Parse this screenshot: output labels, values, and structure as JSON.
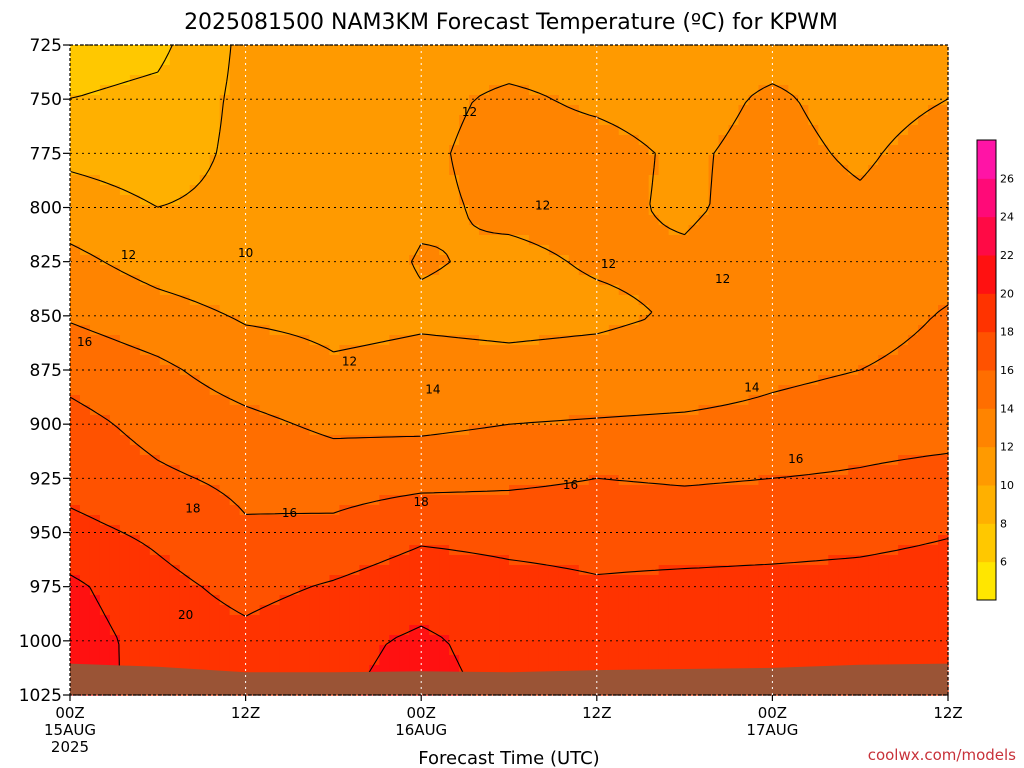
{
  "chart_data": {
    "type": "heatmap",
    "title": "2025081500 NAM3KM Forecast Temperature (ºC) for KPWM",
    "xlabel": "Forecast Time (UTC)",
    "ylabel": "",
    "credit": "coolwx.com/models",
    "x_ticks": [
      {
        "hour": 0,
        "lines": [
          "00Z",
          "15AUG",
          "2025"
        ]
      },
      {
        "hour": 12,
        "lines": [
          "12Z"
        ]
      },
      {
        "hour": 24,
        "lines": [
          "00Z",
          "16AUG"
        ]
      },
      {
        "hour": 36,
        "lines": [
          "12Z"
        ]
      },
      {
        "hour": 48,
        "lines": [
          "00Z",
          "17AUG"
        ]
      },
      {
        "hour": 60,
        "lines": [
          "12Z"
        ]
      }
    ],
    "xlim": [
      0,
      60
    ],
    "y_ticks": [
      725,
      750,
      775,
      800,
      825,
      850,
      875,
      900,
      925,
      950,
      975,
      1000,
      1025
    ],
    "ylim": [
      1025,
      725
    ],
    "grid": true,
    "colorbar": {
      "ticks": [
        6,
        8,
        10,
        12,
        14,
        16,
        18,
        20,
        22,
        24,
        26
      ],
      "levels": [
        4,
        6,
        8,
        10,
        12,
        14,
        16,
        18,
        20,
        22,
        24,
        26,
        28
      ],
      "colors": [
        "#ffe600",
        "#ffc800",
        "#ffb000",
        "#ff9a00",
        "#ff8400",
        "#ff6e00",
        "#ff5200",
        "#ff3300",
        "#ff1111",
        "#ff0a45",
        "#ff0a78",
        "#ff14a6"
      ]
    },
    "contour_labels": [
      {
        "text": "12",
        "hour": 27.3,
        "p": 756
      },
      {
        "text": "12",
        "hour": 32.3,
        "p": 799
      },
      {
        "text": "12",
        "hour": 36.8,
        "p": 826
      },
      {
        "text": "12",
        "hour": 44.6,
        "p": 833
      },
      {
        "text": "12",
        "hour": 4.0,
        "p": 822
      },
      {
        "text": "10",
        "hour": 12.0,
        "p": 821
      },
      {
        "text": "12",
        "hour": 19.1,
        "p": 871
      },
      {
        "text": "16",
        "hour": 1.0,
        "p": 862
      },
      {
        "text": "14",
        "hour": 24.8,
        "p": 884
      },
      {
        "text": "14",
        "hour": 46.6,
        "p": 883
      },
      {
        "text": "16",
        "hour": 49.6,
        "p": 916
      },
      {
        "text": "16",
        "hour": 34.2,
        "p": 928
      },
      {
        "text": "16",
        "hour": 15.0,
        "p": 941
      },
      {
        "text": "18",
        "hour": 8.4,
        "p": 939
      },
      {
        "text": "18",
        "hour": 24.0,
        "p": 936
      },
      {
        "text": "20",
        "hour": 7.9,
        "p": 988
      }
    ],
    "temperature_field": {
      "hours": [
        0,
        6,
        12,
        18,
        24,
        30,
        36,
        42,
        48,
        54,
        60
      ],
      "pressures": [
        725,
        750,
        775,
        800,
        825,
        850,
        875,
        900,
        925,
        950,
        975,
        1000,
        1025
      ],
      "values": [
        [
          7.0,
          7.5,
          10.5,
          11.5,
          11.5,
          11.5,
          11.5,
          11.5,
          11.5,
          11.5,
          11.5
        ],
        [
          8.0,
          8.5,
          10.5,
          11.5,
          11.7,
          12.2,
          11.8,
          11.5,
          12.2,
          11.5,
          12.0
        ],
        [
          9.5,
          9.0,
          10.5,
          11.0,
          11.8,
          12.4,
          12.4,
          11.8,
          12.4,
          11.8,
          12.6
        ],
        [
          11.0,
          10.0,
          10.5,
          10.8,
          11.8,
          12.2,
          12.3,
          11.8,
          12.5,
          12.2,
          12.8
        ],
        [
          12.5,
          11.2,
          10.6,
          11.2,
          12.1,
          11.8,
          12.1,
          12.2,
          12.8,
          12.6,
          13.2
        ],
        [
          13.8,
          12.8,
          11.8,
          11.6,
          11.8,
          11.7,
          11.8,
          12.1,
          12.6,
          13.0,
          14.2
        ],
        [
          15.4,
          14.4,
          13.0,
          12.2,
          12.4,
          12.3,
          12.4,
          12.6,
          13.5,
          14.0,
          14.8
        ],
        [
          16.6,
          15.4,
          14.5,
          13.6,
          13.6,
          14.0,
          14.2,
          14.4,
          14.7,
          15.2,
          15.3
        ],
        [
          17.3,
          16.3,
          15.6,
          15.1,
          15.4,
          15.6,
          16.0,
          15.8,
          16.0,
          16.2,
          16.6
        ],
        [
          18.6,
          17.6,
          16.2,
          16.5,
          17.6,
          17.4,
          17.3,
          17.2,
          17.3,
          17.5,
          17.9
        ],
        [
          20.4,
          18.6,
          17.4,
          18.2,
          19.2,
          18.6,
          18.2,
          18.4,
          18.5,
          18.6,
          18.8
        ],
        [
          21.0,
          19.2,
          18.5,
          19.5,
          20.3,
          19.3,
          19.0,
          19.2,
          19.3,
          19.2,
          19.4
        ],
        [
          20.8,
          19.4,
          18.8,
          19.8,
          20.6,
          19.6,
          19.3,
          19.5,
          19.6,
          19.5,
          19.7
        ]
      ]
    },
    "terrain_color": "#9a5436",
    "contour_line_color": "#000000"
  }
}
